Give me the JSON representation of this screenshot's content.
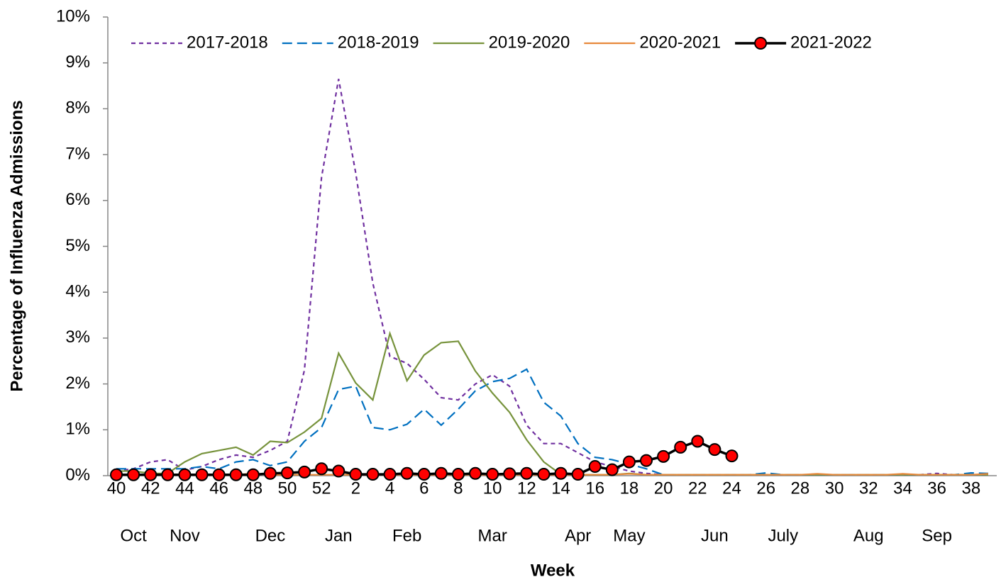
{
  "chart_data": {
    "type": "line",
    "y_axis_label": "Percentage of Influenza Admissions",
    "x_axis_label": "Week",
    "categories": [
      "40",
      null,
      "42",
      null,
      "44",
      null,
      "46",
      null,
      "48",
      null,
      "50",
      null,
      "52",
      null,
      "2",
      null,
      "4",
      null,
      "6",
      null,
      "8",
      null,
      "10",
      null,
      "12",
      null,
      "14",
      null,
      "16",
      null,
      "18",
      null,
      "20",
      null,
      "22",
      null,
      "24",
      null,
      "26",
      null,
      "28",
      null,
      "30",
      null,
      "32",
      null,
      "34",
      null,
      "36",
      null,
      "38",
      null
    ],
    "month_categories": [
      null,
      "Oct",
      null,
      null,
      "Nov",
      null,
      null,
      null,
      null,
      "Dec",
      null,
      null,
      null,
      "Jan",
      null,
      null,
      null,
      "Feb",
      null,
      null,
      null,
      null,
      "Mar",
      null,
      null,
      null,
      null,
      "Apr",
      null,
      null,
      "May",
      null,
      null,
      null,
      null,
      "Jun",
      null,
      null,
      null,
      "July",
      null,
      null,
      null,
      null,
      "Aug",
      null,
      null,
      null,
      "Sep",
      null,
      null,
      null
    ],
    "ylim": [
      0,
      10
    ],
    "yticks": [
      {
        "value": 0,
        "label": "0%"
      },
      {
        "value": 1,
        "label": "1%"
      },
      {
        "value": 2,
        "label": "2%"
      },
      {
        "value": 3,
        "label": "3%"
      },
      {
        "value": 4,
        "label": "4%"
      },
      {
        "value": 5,
        "label": "5%"
      },
      {
        "value": 6,
        "label": "6%"
      },
      {
        "value": 7,
        "label": "7%"
      },
      {
        "value": 8,
        "label": "8%"
      },
      {
        "value": 9,
        "label": "9%"
      },
      {
        "value": 10,
        "label": "10%"
      }
    ],
    "grid": false,
    "legend": "top",
    "series": [
      {
        "name": "2017-2018",
        "color": "#7030a0",
        "dash": "short",
        "values": [
          0.1,
          0.15,
          0.3,
          0.35,
          0.12,
          0.2,
          0.35,
          0.45,
          0.4,
          0.55,
          0.75,
          2.3,
          6.5,
          8.65,
          6.6,
          4.2,
          2.6,
          2.45,
          2.1,
          1.7,
          1.65,
          2.0,
          2.2,
          1.95,
          1.1,
          0.7,
          0.7,
          0.5,
          0.3,
          0.2,
          0.1,
          0.05,
          0.02,
          0.02,
          0.02,
          0.02,
          0.02,
          0.02,
          0.02,
          0.02,
          0.02,
          0.02,
          0.02,
          0.02,
          0.02,
          0.02,
          0.02,
          0.02,
          0.05,
          0.02,
          0.02,
          0.02
        ]
      },
      {
        "name": "2018-2019",
        "color": "#0070c0",
        "dash": "long",
        "values": [
          0.15,
          0.15,
          0.15,
          0.15,
          0.15,
          0.2,
          0.15,
          0.3,
          0.35,
          0.22,
          0.3,
          0.75,
          1.05,
          1.88,
          1.95,
          1.05,
          1.0,
          1.12,
          1.45,
          1.1,
          1.45,
          1.85,
          2.05,
          2.12,
          2.32,
          1.6,
          1.3,
          0.7,
          0.4,
          0.35,
          0.25,
          0.15,
          0.02,
          0.02,
          0.02,
          0.02,
          0.02,
          0.02,
          0.06,
          0.02,
          0.02,
          0.02,
          0.02,
          0.02,
          0.02,
          0.02,
          0.02,
          0.02,
          0.02,
          0.02,
          0.06,
          0.05
        ]
      },
      {
        "name": "2019-2020",
        "color": "#77933c",
        "dash": "solid",
        "values": [
          0.1,
          0.1,
          0.05,
          0.05,
          0.3,
          0.48,
          0.55,
          0.62,
          0.45,
          0.75,
          0.72,
          0.95,
          1.25,
          2.67,
          2.02,
          1.65,
          3.1,
          2.07,
          2.63,
          2.9,
          2.93,
          2.28,
          1.8,
          1.38,
          0.78,
          0.3,
          0.03,
          0.02,
          0.02,
          0.02,
          0.05,
          0.02,
          0.02,
          0.02,
          0.02,
          0.02,
          0.02,
          0.02,
          0.02,
          0.02,
          0.02,
          0.02,
          0.02,
          0.02,
          0.02,
          0.02,
          0.02,
          0.02,
          0.02,
          0.02,
          0.02,
          0.02
        ]
      },
      {
        "name": "2020-2021",
        "color": "#e7893b",
        "dash": "solid",
        "values": [
          0.02,
          0.02,
          0.02,
          0.02,
          0.02,
          0.02,
          0.02,
          0.02,
          0.05,
          0.02,
          0.02,
          0.02,
          0.02,
          0.02,
          0.02,
          0.02,
          0.02,
          0.02,
          0.02,
          0.02,
          0.02,
          0.02,
          0.02,
          0.02,
          0.02,
          0.02,
          0.02,
          0.02,
          0.02,
          0.02,
          0.04,
          0.02,
          0.02,
          0.02,
          0.02,
          0.02,
          0.02,
          0.02,
          0.02,
          0.02,
          0.02,
          0.04,
          0.02,
          0.02,
          0.02,
          0.02,
          0.04,
          0.02,
          0.02,
          0.02,
          0.02,
          0.04
        ]
      },
      {
        "name": "2021-2022",
        "color": "#000000",
        "marker_color": "#ff0000",
        "markers": true,
        "dash": "solid",
        "values": [
          0.02,
          0.02,
          0.02,
          0.02,
          0.02,
          0.02,
          0.02,
          0.02,
          0.02,
          0.05,
          0.06,
          0.08,
          0.15,
          0.1,
          0.03,
          0.03,
          0.03,
          0.05,
          0.03,
          0.05,
          0.03,
          0.05,
          0.03,
          0.04,
          0.05,
          0.03,
          0.05,
          0.03,
          0.2,
          0.13,
          0.3,
          0.33,
          0.42,
          0.62,
          0.75,
          0.57,
          0.43,
          null,
          null,
          null,
          null,
          null,
          null,
          null,
          null,
          null,
          null,
          null,
          null,
          null,
          null,
          null
        ]
      }
    ]
  }
}
